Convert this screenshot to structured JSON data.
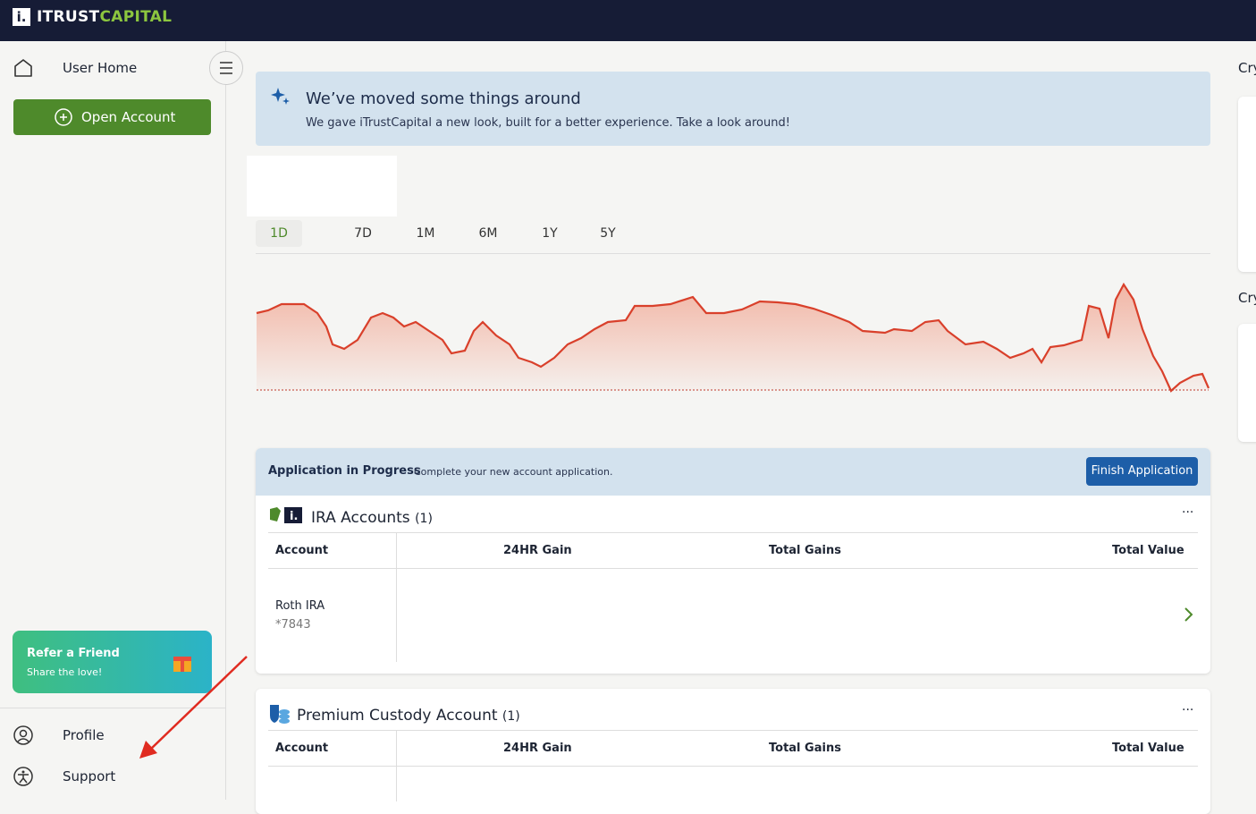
{
  "header": {
    "logo_mark": "i.",
    "logo_left": "ITRUST",
    "logo_right": "CAPITAL"
  },
  "sidebar": {
    "user_home": "User Home",
    "open_account": "Open Account",
    "refer_title": "Refer a Friend",
    "refer_sub": "Share the love!",
    "profile": "Profile",
    "support": "Support"
  },
  "banner": {
    "title": "We’ve moved some things around",
    "text": "We gave iTrustCapital a new look, built for a better experience. Take a look around!"
  },
  "ranges": [
    "1D",
    "7D",
    "1M",
    "6M",
    "1Y",
    "5Y"
  ],
  "application": {
    "title": "Application in Progress",
    "text": "Complete your new account application.",
    "button": "Finish Application"
  },
  "ira": {
    "title": "IRA Accounts",
    "count": "(1)",
    "menu": "···",
    "headers": [
      "Account",
      "24HR Gain",
      "Total Gains",
      "Total Value"
    ],
    "row": {
      "name": "Roth IRA",
      "number": "*7843"
    }
  },
  "premium": {
    "title": "Premium Custody Account",
    "count": "(1)",
    "menu": "···",
    "headers": [
      "Account",
      "24HR Gain",
      "Total Gains",
      "Total Value"
    ]
  },
  "right": {
    "heading1": "Cry",
    "heading2": "Cry"
  }
}
